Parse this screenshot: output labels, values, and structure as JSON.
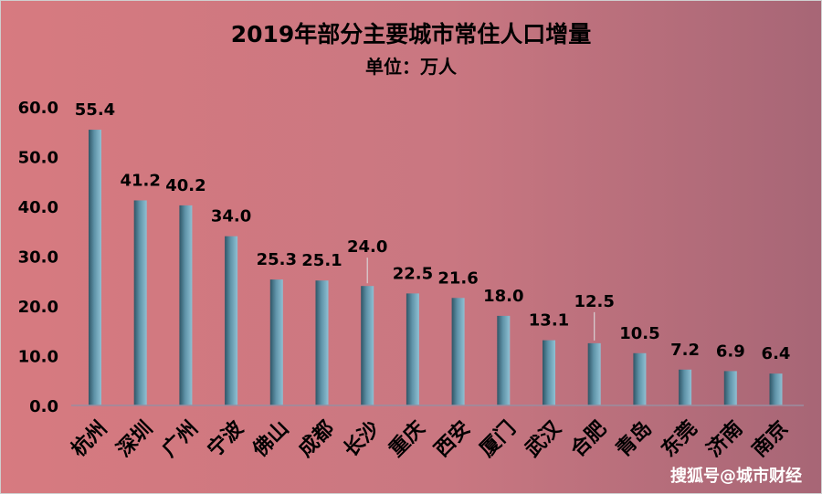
{
  "chart_data": {
    "type": "bar",
    "title": "2019年部分主要城市常住人口增量",
    "subtitle": "单位：万人",
    "categories": [
      "杭州",
      "深圳",
      "广州",
      "宁波",
      "佛山",
      "成都",
      "长沙",
      "重庆",
      "西安",
      "厦门",
      "武汉",
      "合肥",
      "青岛",
      "东莞",
      "济南",
      "南京"
    ],
    "values": [
      55.4,
      41.2,
      40.2,
      34.0,
      25.3,
      25.1,
      24.0,
      22.5,
      21.6,
      18.0,
      13.1,
      12.5,
      10.5,
      7.2,
      6.9,
      6.4
    ],
    "value_labels": [
      "55.4",
      "41.2",
      "40.2",
      "34.0",
      "25.3",
      "25.1",
      "24.0",
      "22.5",
      "21.6",
      "18.0",
      "13.1",
      "12.5",
      "10.5",
      "7.2",
      "6.9",
      "6.4"
    ],
    "ylim": [
      0,
      60
    ],
    "yticks": [
      "0.0",
      "10.0",
      "20.0",
      "30.0",
      "40.0",
      "50.0",
      "60.0"
    ],
    "grid": false,
    "legend": "none",
    "colors": {
      "background_start": "#d77a80",
      "background_end": "#a76676",
      "bar_dark": "#2f5566",
      "bar_mid": "#5f93a8",
      "bar_light": "#8fc0d3",
      "axis": "#9a8da0",
      "text": "#000000",
      "watermark": "#ffffff"
    }
  },
  "watermark": "搜狐号@城市财经"
}
